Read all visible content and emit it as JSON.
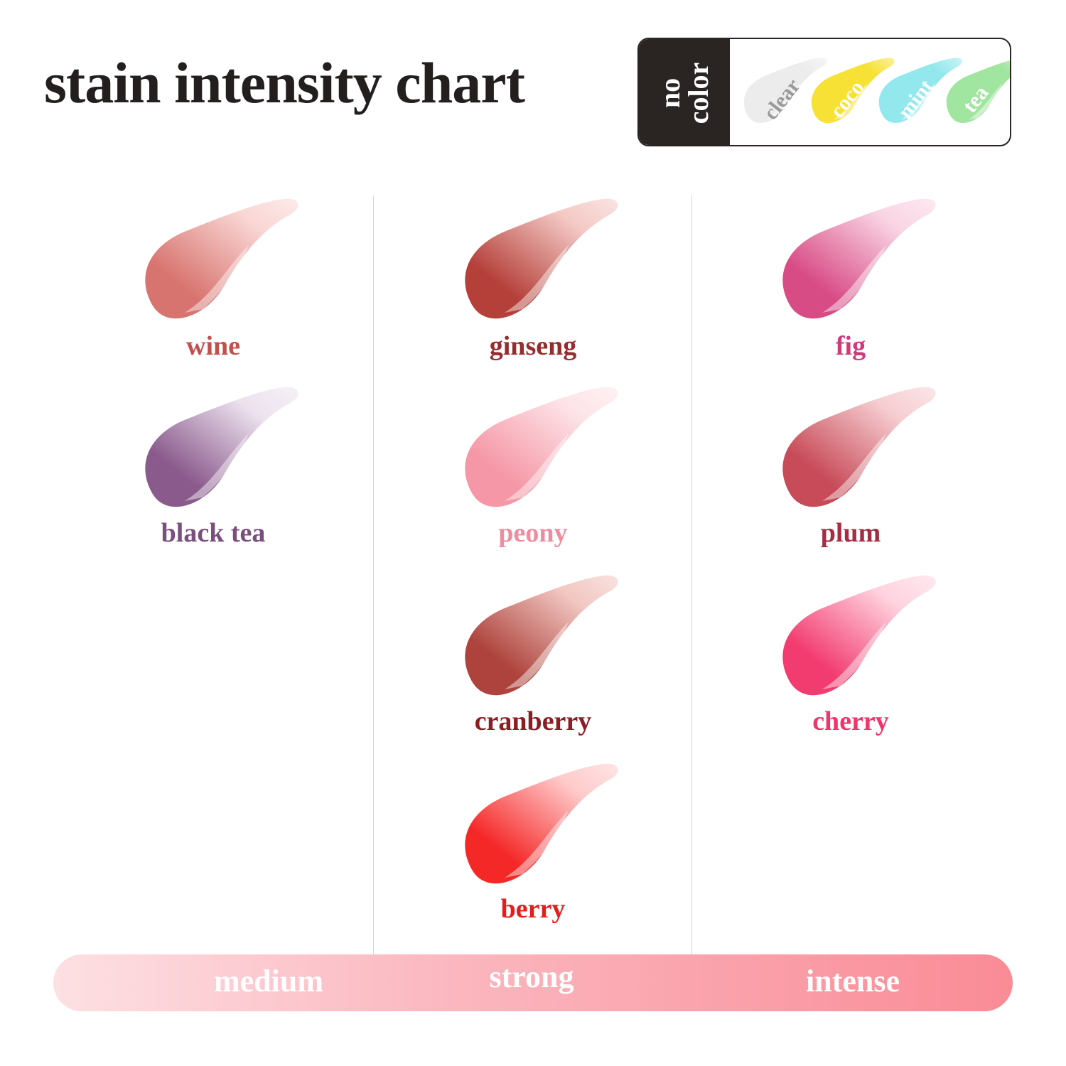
{
  "title": "stain intensity chart",
  "no_color": {
    "label": "no\ncolor",
    "items": [
      {
        "name": "clear",
        "color": "#e8e8e8",
        "text_color": "#9a9a9a"
      },
      {
        "name": "coco",
        "color": "#f5dc10",
        "text_color": "#ffffff"
      },
      {
        "name": "mint",
        "color": "#7fe4ea",
        "text_color": "#ffffff"
      },
      {
        "name": "tea",
        "color": "#8fe08f",
        "text_color": "#ffffff"
      }
    ]
  },
  "columns": [
    {
      "level": "medium",
      "shades": [
        {
          "name": "wine",
          "color": "#d8746f",
          "light": "#f9d6d4",
          "label_color": "#c24f4c"
        },
        {
          "name": "black tea",
          "color": "#8a5a8c",
          "light": "#ece2ee",
          "label_color": "#7a4f7d"
        }
      ]
    },
    {
      "level": "strong",
      "shades": [
        {
          "name": "ginseng",
          "color": "#b5403a",
          "light": "#f4c9c5",
          "label_color": "#962c2c"
        },
        {
          "name": "peony",
          "color": "#f597a6",
          "light": "#fde3e7",
          "label_color": "#f08ca0"
        },
        {
          "name": "cranberry",
          "color": "#ad433c",
          "light": "#f2c6c1",
          "label_color": "#8a1e22"
        },
        {
          "name": "berry",
          "color": "#f52828",
          "light": "#ffcaca",
          "label_color": "#e51d1d"
        }
      ]
    },
    {
      "level": "intense",
      "shades": [
        {
          "name": "fig",
          "color": "#d84c86",
          "light": "#f9d4e3",
          "label_color": "#cf3a78"
        },
        {
          "name": "plum",
          "color": "#c74b58",
          "light": "#f6cdd1",
          "label_color": "#a62b44"
        },
        {
          "name": "cherry",
          "color": "#f23c70",
          "light": "#ffd3df",
          "label_color": "#ef356a"
        }
      ]
    }
  ],
  "scale_bar": {
    "from": "#fde0e3",
    "to": "#fa8b96"
  }
}
